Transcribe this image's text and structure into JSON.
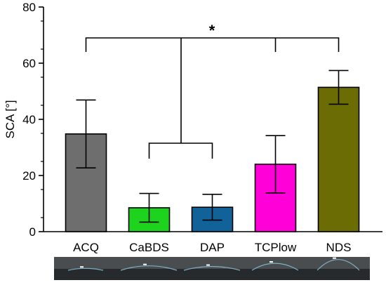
{
  "chart_data": {
    "type": "bar",
    "categories": [
      "ACQ",
      "CaBDS",
      "DAP",
      "TCPlow",
      "NDS"
    ],
    "values": [
      34.8,
      8.5,
      8.7,
      24.0,
      51.4
    ],
    "errors": [
      12.1,
      5.1,
      4.6,
      10.2,
      6.0
    ],
    "colors": [
      "#6e6e6e",
      "#1dd31d",
      "#12629a",
      "#ff00d8",
      "#6c6c05"
    ],
    "ylabel": "SCA [°]",
    "xlabel": "",
    "ylim": [
      0,
      80
    ],
    "yticks": [
      0,
      20,
      40,
      60,
      80
    ],
    "grid": false,
    "significance": {
      "label": "*",
      "comparisons": [
        {
          "from": [
            "ACQ"
          ],
          "to": [
            "CaBDS",
            "DAP",
            "TCPlow",
            "NDS"
          ],
          "bracket_value": 69
        },
        {
          "group": [
            "CaBDS",
            "DAP"
          ],
          "bracket_value": 31.5
        }
      ]
    }
  },
  "droplet_images": {
    "count": 5,
    "description_tokens": [
      "droplet-ACQ",
      "droplet-CaBDS",
      "droplet-DAP",
      "droplet-TCPlow",
      "droplet-NDS"
    ]
  }
}
